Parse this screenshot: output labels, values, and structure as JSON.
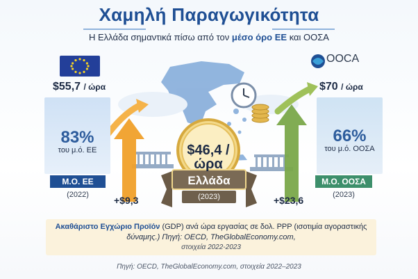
{
  "title": "Χαμηλή Παραγωγικότητα",
  "subtitle": {
    "prefix": "Η Ελλάδα σημαντικά πίσω από τον",
    "highlight": "μέσο όρο ΕΕ",
    "suffix": "και ΟΟΣΑ"
  },
  "left": {
    "price": "$55,7",
    "unit": "/ ώρα",
    "pct": "83%",
    "pct_label": "του μ.ό. ΕΕ",
    "bar_label": "Μ.Ο. ΕΕ",
    "year": "(2022)",
    "delta": "+$9,3",
    "flag_icon": "eu-flag-icon"
  },
  "right": {
    "logo_text": "OOCA",
    "logo_icon": "oecd-globe-icon",
    "price": "$70",
    "unit": "/ ώρα",
    "pct": "66%",
    "pct_label": "του μ.ό. ΟΟΣΑ",
    "bar_label": "Μ.Ο. ΟΟΣΑ",
    "year": "(2023)",
    "delta": "+$23,6"
  },
  "center": {
    "value_line1": "$46,4 /",
    "value_line2": "ώρα",
    "country": "Ελλάδα",
    "year": "(2023)"
  },
  "info": {
    "bold": "Ακαθάριστο Εγχώριο Προϊόν",
    "rest": " (GDP) ανά ώρα εργασίας σε δολ. PPP (ισοτιμία αγοραστικής",
    "line2": "δύναμης.) Πηγή: OECD, TheGlobalEconomy.com,",
    "line3": "στοιχεία 2022-2023"
  },
  "footer": "Πηγή: OECD, TheGlobalEconomy.com, στοιχεία 2022–2023",
  "colors": {
    "title": "#1f4f94",
    "eu_bar": "#1f4f94",
    "oecd_bar": "#3d8f6b",
    "medal": "#e8c56a",
    "ribbon": "#7a6a55",
    "arrow_orange": "#f0a02a",
    "arrow_green": "#7aa84a"
  }
}
